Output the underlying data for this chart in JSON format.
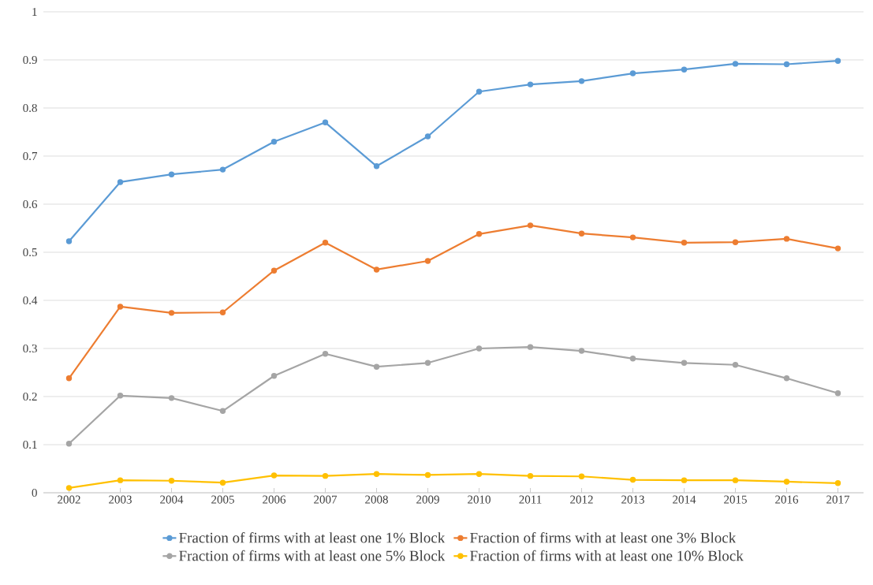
{
  "chart_data": {
    "type": "line",
    "categories": [
      "2002",
      "2003",
      "2004",
      "2005",
      "2006",
      "2007",
      "2008",
      "2009",
      "2010",
      "2011",
      "2012",
      "2013",
      "2014",
      "2015",
      "2016",
      "2017"
    ],
    "series": [
      {
        "name": "Fraction of firms with at least one 1% Block",
        "color": "#5b9bd5",
        "values": [
          0.523,
          0.646,
          0.662,
          0.672,
          0.73,
          0.77,
          0.679,
          0.741,
          0.834,
          0.849,
          0.856,
          0.872,
          0.88,
          0.892,
          0.891,
          0.898
        ]
      },
      {
        "name": "Fraction of firms with at least one 3% Block",
        "color": "#ed7d31",
        "values": [
          0.238,
          0.387,
          0.374,
          0.375,
          0.462,
          0.52,
          0.464,
          0.482,
          0.538,
          0.556,
          0.539,
          0.531,
          0.52,
          0.521,
          0.528,
          0.508
        ]
      },
      {
        "name": "Fraction of firms with at least one 5% Block",
        "color": "#a5a5a5",
        "values": [
          0.102,
          0.202,
          0.197,
          0.17,
          0.243,
          0.289,
          0.262,
          0.27,
          0.3,
          0.303,
          0.295,
          0.279,
          0.27,
          0.266,
          0.238,
          0.207
        ]
      },
      {
        "name": "Fraction of firms with at least one 10% Block",
        "color": "#ffc000",
        "values": [
          0.01,
          0.026,
          0.025,
          0.021,
          0.036,
          0.035,
          0.039,
          0.037,
          0.039,
          0.035,
          0.034,
          0.027,
          0.026,
          0.026,
          0.023,
          0.02
        ]
      }
    ],
    "ylim": [
      0,
      1
    ],
    "yticks": [
      0,
      0.1,
      0.2,
      0.3,
      0.4,
      0.5,
      0.6,
      0.7,
      0.8,
      0.9,
      1
    ],
    "grid": "y",
    "legend": "bottom",
    "marker": "circle",
    "line_style": "solid"
  }
}
